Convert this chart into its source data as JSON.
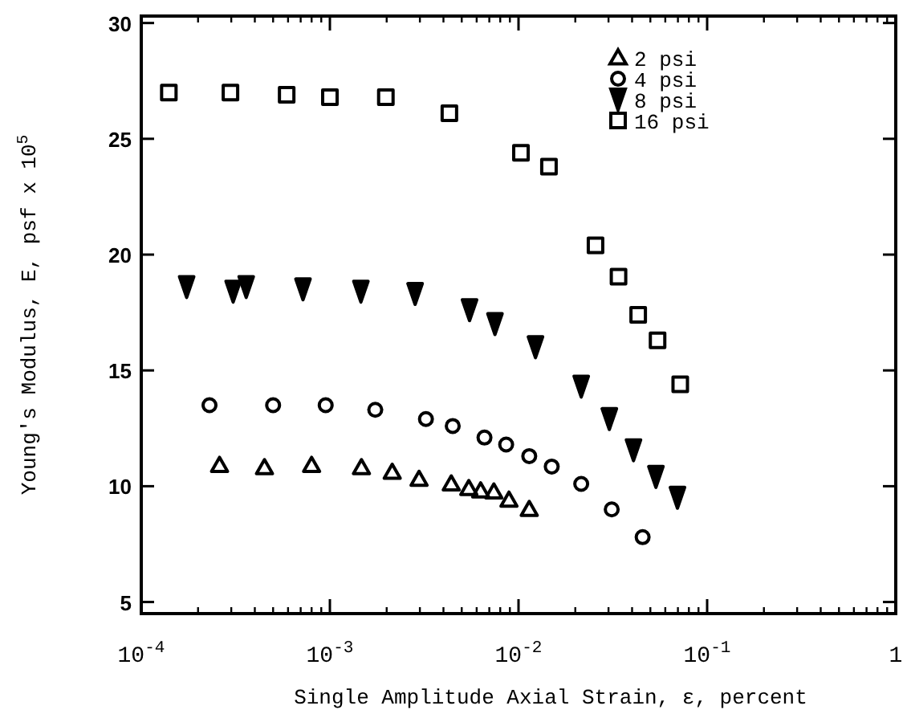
{
  "chart_data": {
    "type": "scatter",
    "xlabel": "Single Amplitude Axial Strain, ε, percent",
    "ylabel": "Young's Modulus, E, psf x 10$^{5}$",
    "log": "x",
    "xlim": [
      0.0001,
      1
    ],
    "xticks": [
      {
        "value": 0.0001,
        "label": "10$^{-4}$"
      },
      {
        "value": 0.001,
        "label": "10$^{-3}$"
      },
      {
        "value": 0.01,
        "label": "10$^{-2}$"
      },
      {
        "value": 0.1,
        "label": "10$^{-1}$"
      },
      1
    ],
    "ylim": [
      4.5,
      30.3
    ],
    "yticks": [
      5,
      10,
      15,
      20,
      25,
      30
    ],
    "legend": "top right",
    "grid": false,
    "series": [
      {
        "name": "2 psi",
        "color": "#000000",
        "marker": "triangle",
        "x": [
          0.00026,
          0.00045,
          0.0008,
          0.00147,
          0.00214,
          0.00297,
          0.0044,
          0.00545,
          0.0063,
          0.0074,
          0.0089,
          0.0114
        ],
        "values": [
          10.9,
          10.8,
          10.9,
          10.8,
          10.6,
          10.3,
          10.1,
          9.9,
          9.8,
          9.75,
          9.4,
          9.0
        ]
      },
      {
        "name": "4 psi",
        "color": "#000000",
        "marker": "circle",
        "x": [
          0.00023,
          0.0005,
          0.00095,
          0.00174,
          0.00323,
          0.00448,
          0.0066,
          0.0086,
          0.0114,
          0.015,
          0.0215,
          0.0312,
          0.0455
        ],
        "values": [
          13.5,
          13.5,
          13.5,
          13.3,
          12.9,
          12.6,
          12.1,
          11.8,
          11.3,
          10.85,
          10.1,
          9.0,
          7.8
        ]
      },
      {
        "name": "8 psi",
        "color": "#000000",
        "marker": "triangle-down",
        "x": [
          0.000174,
          0.000307,
          0.00036,
          0.00072,
          0.00146,
          0.00283,
          0.0055,
          0.0075,
          0.0123,
          0.0215,
          0.0303,
          0.0407,
          0.0535,
          0.0696
        ],
        "values": [
          18.6,
          18.4,
          18.6,
          18.5,
          18.4,
          18.3,
          17.6,
          17.0,
          16.0,
          14.3,
          12.9,
          11.55,
          10.4,
          9.5
        ]
      },
      {
        "name": "16 psi",
        "color": "#000000",
        "marker": "square",
        "x": [
          0.00014,
          0.000297,
          0.00059,
          0.001,
          0.00198,
          0.0043,
          0.0103,
          0.0145,
          0.0256,
          0.0339,
          0.0431,
          0.0546,
          0.072
        ],
        "values": [
          27.0,
          27.0,
          26.9,
          26.8,
          26.8,
          26.1,
          24.4,
          23.8,
          20.4,
          19.05,
          17.4,
          16.3,
          14.4
        ]
      }
    ]
  }
}
